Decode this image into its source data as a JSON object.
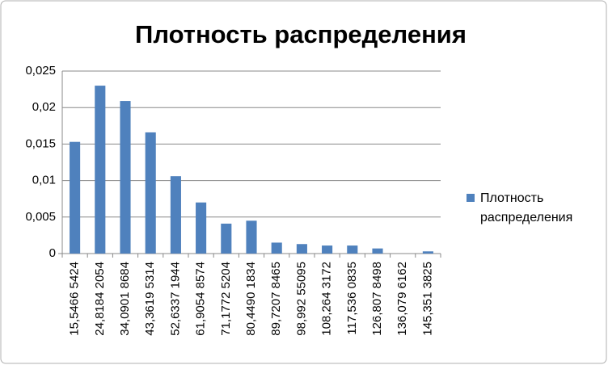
{
  "chart_data": {
    "type": "bar",
    "title": "Плотность распределения",
    "categories": [
      "15,5466 5424",
      "24,8184 2054",
      "34,0901 8684",
      "43,3619 5314",
      "52,6337 1944",
      "61,9054 8574",
      "71,1772 5204",
      "80,4490 1834",
      "89,7207 8465",
      "98,992 55095",
      "108,264 3172",
      "117,536 0835",
      "126,807 8498",
      "136,079 6162",
      "145,351 3825"
    ],
    "series": [
      {
        "name": "Плотность распределения",
        "color": "#4f81bd",
        "values": [
          0.0153,
          0.023,
          0.0209,
          0.0166,
          0.0106,
          0.007,
          0.0041,
          0.0045,
          0.0015,
          0.0013,
          0.0011,
          0.0011,
          0.0007,
          0,
          0.0003
        ]
      }
    ],
    "ylim": [
      0,
      0.025
    ],
    "yticks": [
      0,
      {
        "value": 0.005,
        "label": "0,005"
      },
      {
        "value": 0.01,
        "label": "0,01"
      },
      {
        "value": 0.015,
        "label": "0,015"
      },
      {
        "value": 0.02,
        "label": "0,02"
      },
      {
        "value": 0.025,
        "label": "0,025"
      }
    ],
    "grid": true,
    "legend": "right"
  }
}
